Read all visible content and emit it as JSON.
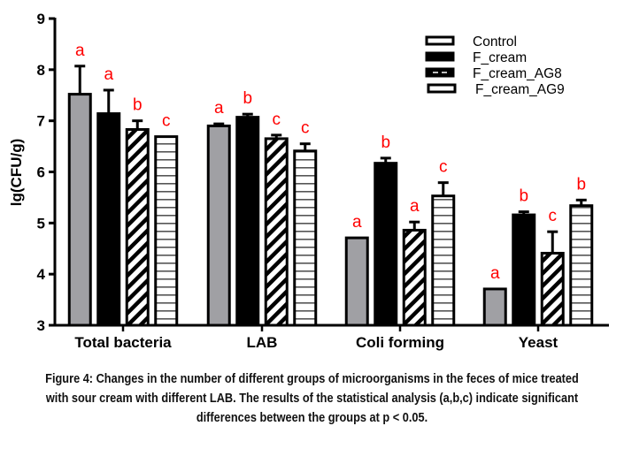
{
  "chart_data": {
    "type": "bar",
    "title": "",
    "xlabel": "",
    "ylabel": "lg(CFU/g)",
    "ylim": [
      3,
      9
    ],
    "yticks": [
      3,
      4,
      5,
      6,
      7,
      8,
      9
    ],
    "grid": false,
    "legend_position": "top-right",
    "categories": [
      "Total bacteria",
      "LAB",
      "Coli forming",
      "Yeast"
    ],
    "series": [
      {
        "name": "Control",
        "pattern": "gray",
        "color": "#a0a0a4",
        "values": [
          7.52,
          6.9,
          4.71,
          3.71
        ],
        "errors": [
          0.55,
          0.04,
          0.0,
          0.0
        ],
        "letters": [
          "a",
          "a",
          "a",
          "a"
        ]
      },
      {
        "name": "F_cream",
        "pattern": "solid",
        "color": "#000000",
        "values": [
          7.14,
          7.07,
          6.17,
          5.16
        ],
        "errors": [
          0.46,
          0.06,
          0.1,
          0.06
        ],
        "letters": [
          "a",
          "b",
          "b",
          "b"
        ]
      },
      {
        "name": "F_cream_AG8",
        "pattern": "diagonal",
        "color": "#000000",
        "values": [
          6.83,
          6.65,
          4.86,
          4.41
        ],
        "errors": [
          0.17,
          0.07,
          0.16,
          0.42
        ],
        "letters": [
          "b",
          "c",
          "a",
          "c"
        ]
      },
      {
        "name": "F_cream_AG9",
        "pattern": "horizontal",
        "color": "#000000",
        "values": [
          6.69,
          6.41,
          5.53,
          5.34
        ],
        "errors": [
          0.0,
          0.14,
          0.26,
          0.11
        ],
        "letters": [
          "c",
          "c",
          "c",
          "b"
        ]
      }
    ],
    "letter_color": "#ff0000"
  },
  "caption": {
    "lines": [
      "Figure 4: Changes in the number of different groups of microorganisms in the feces of mice treated",
      "with sour cream with different LAB. The results of the statistical analysis (a,b,c) indicate significant",
      "differences between the groups at p < 0.05."
    ]
  }
}
